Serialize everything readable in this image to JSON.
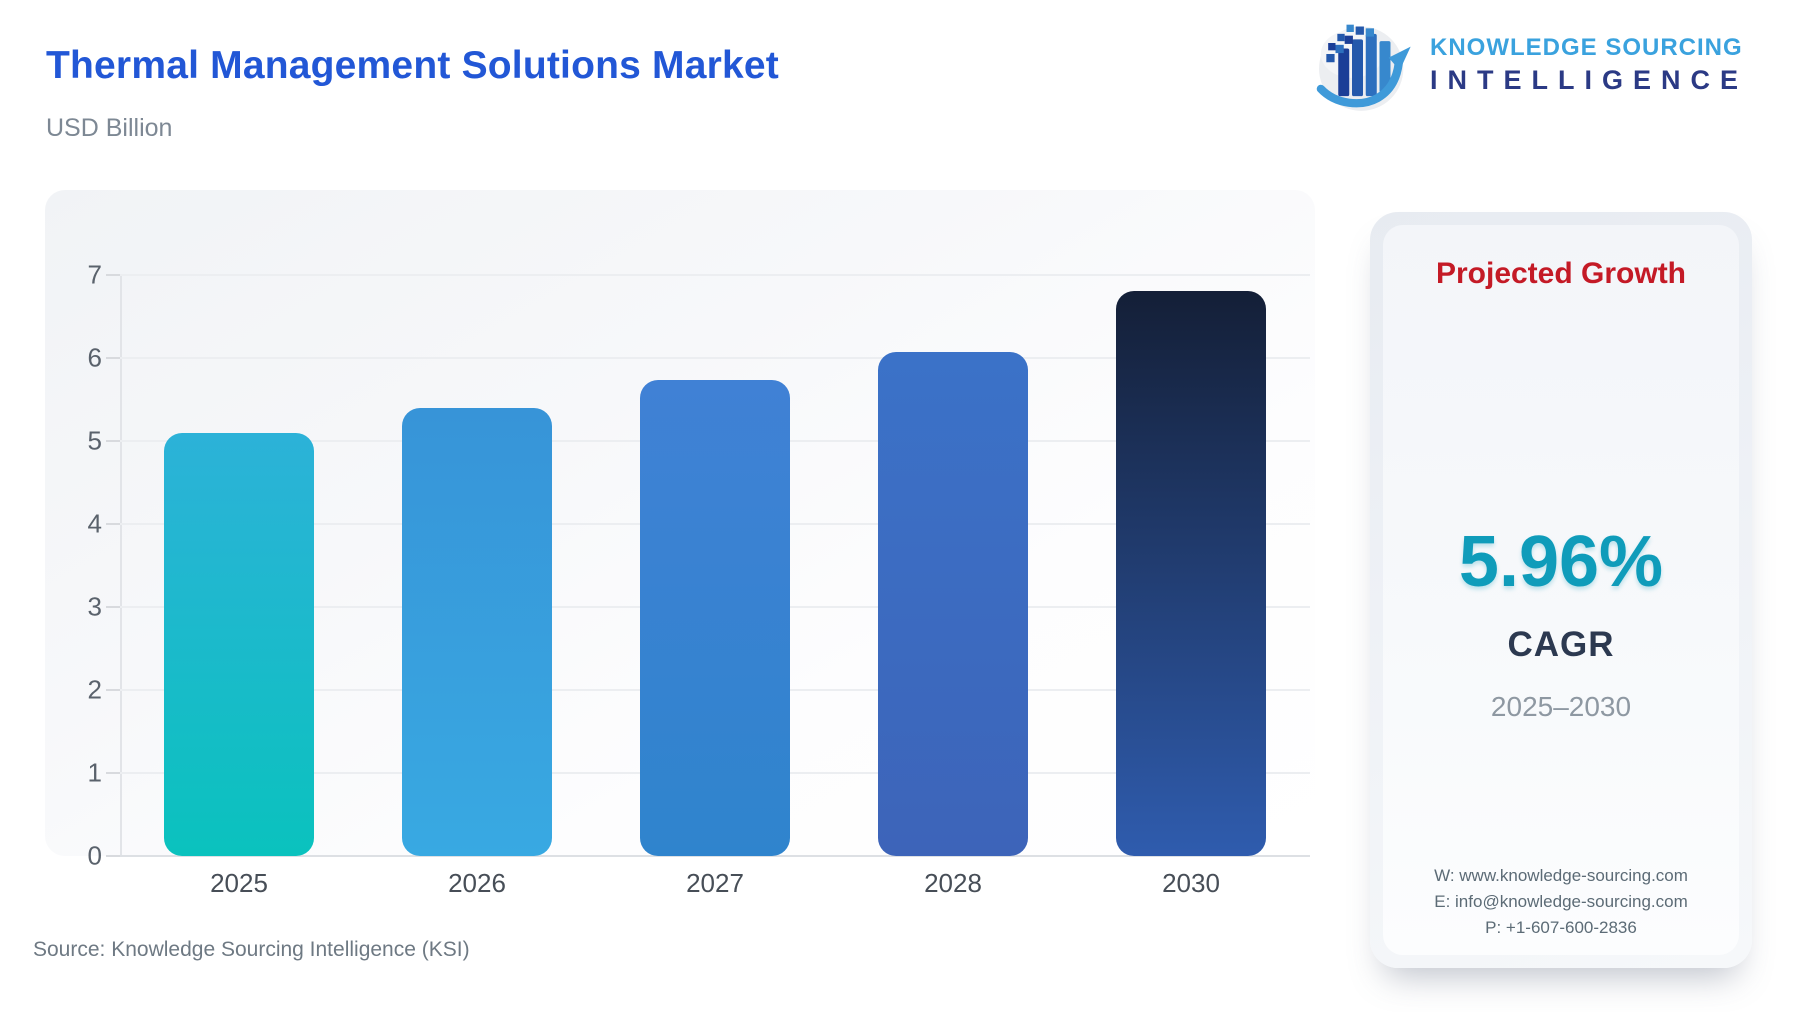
{
  "header": {
    "title": "Thermal Management Solutions Market",
    "subtitle": "USD Billion",
    "logo": {
      "line1": "KNOWLEDGE SOURCING",
      "line2": "INTELLIGENCE"
    }
  },
  "chart_data": {
    "type": "bar",
    "title": "Thermal Management Solutions Market",
    "unit_label": "USD Billion",
    "categories": [
      "2025",
      "2026",
      "2027",
      "2028",
      "2030"
    ],
    "values": [
      5.1,
      5.4,
      5.73,
      6.07,
      6.81
    ],
    "ylim": [
      0,
      7
    ],
    "yticks": [
      0,
      1,
      2,
      3,
      4,
      5,
      6,
      7
    ],
    "grid": true,
    "legend": "none",
    "bar_gradients": [
      {
        "top": "#2cb2d8",
        "bottom": "#0ac2be"
      },
      {
        "top": "#3794d8",
        "bottom": "#38a9e2"
      },
      {
        "top": "#4081d5",
        "bottom": "#2f84cd"
      },
      {
        "top": "#3b72c8",
        "bottom": "#3d64b9"
      },
      {
        "top": "#141f37",
        "bottom": "#2f5cae"
      }
    ]
  },
  "panel": {
    "title": "Projected Growth",
    "cagr_value": "5.96%",
    "cagr_label": "CAGR",
    "period": "2025–2030",
    "contact": {
      "website": "W: www.knowledge-sourcing.com",
      "email": "E: info@knowledge-sourcing.com",
      "phone": "P: +1-607-600-2836"
    }
  },
  "footer": {
    "source": "Source: Knowledge Sourcing Intelligence (KSI)"
  },
  "colors": {
    "title_blue": "#2257d6",
    "subtitle_gray": "#7d8894",
    "panel_title_red": "#c41a26",
    "cagr_teal": "#0f9cba",
    "cagr_navy": "#2c3950",
    "period_gray": "#8e98a2",
    "logo_light_blue": "#3aa2de",
    "logo_navy": "#2b3a85",
    "gridline_gray": "#eceef1"
  }
}
